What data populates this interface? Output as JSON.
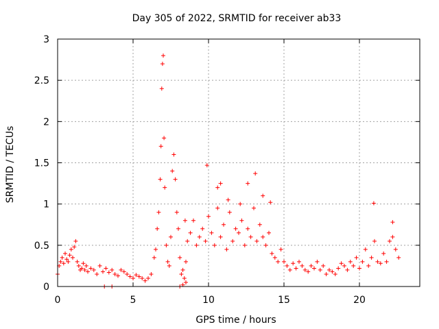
{
  "chart_data": {
    "type": "scatter",
    "title": "Day 305 of 2022, SRMTID for receiver ab33",
    "xlabel": "GPS time / hours",
    "ylabel": "SRMTID / TECUs",
    "xlim": [
      0,
      24
    ],
    "ylim": [
      0,
      3
    ],
    "x_ticks": [
      0,
      5,
      10,
      15,
      20
    ],
    "x_tick_labels": [
      "0",
      "5",
      "10",
      "15",
      "20"
    ],
    "y_ticks": [
      0,
      0.5,
      1,
      1.5,
      2,
      2.5,
      3
    ],
    "y_tick_labels": [
      "0",
      "0.5",
      "1",
      "1.5",
      "2",
      "2.5",
      "3"
    ],
    "grid": true,
    "marker": "+",
    "color": "#ff0000",
    "series": [
      {
        "name": "SRMTID",
        "x": [
          0.0,
          0.1,
          0.2,
          0.3,
          0.4,
          0.5,
          0.6,
          0.7,
          0.8,
          0.9,
          1.0,
          1.1,
          1.2,
          1.3,
          1.4,
          1.5,
          1.6,
          1.7,
          1.8,
          1.9,
          2.0,
          2.2,
          2.4,
          2.6,
          2.8,
          3.0,
          3.2,
          3.4,
          3.6,
          3.8,
          4.0,
          4.2,
          4.4,
          4.6,
          4.8,
          5.0,
          5.2,
          5.4,
          5.6,
          5.8,
          6.0,
          6.2,
          6.4,
          6.5,
          6.6,
          6.7,
          6.8,
          6.85,
          6.9,
          6.95,
          7.0,
          7.05,
          7.1,
          7.2,
          7.3,
          7.4,
          7.5,
          7.6,
          7.7,
          7.8,
          7.9,
          8.0,
          8.1,
          8.2,
          8.3,
          8.4,
          8.5,
          8.6,
          8.8,
          9.0,
          9.2,
          9.4,
          9.6,
          9.8,
          10.0,
          10.2,
          10.4,
          10.6,
          10.8,
          11.0,
          11.2,
          11.4,
          11.6,
          11.8,
          12.0,
          12.2,
          12.4,
          12.6,
          12.8,
          13.0,
          13.2,
          13.4,
          13.6,
          13.8,
          14.0,
          14.2,
          14.4,
          14.6,
          14.8,
          15.0,
          15.2,
          15.4,
          15.6,
          15.8,
          16.0,
          16.2,
          16.4,
          16.6,
          16.8,
          17.0,
          17.2,
          17.4,
          17.6,
          17.8,
          18.0,
          18.2,
          18.4,
          18.6,
          18.8,
          19.0,
          19.2,
          19.4,
          19.6,
          19.8,
          20.0,
          20.2,
          20.4,
          20.6,
          20.8,
          21.0,
          21.2,
          21.4,
          21.6,
          21.8,
          22.0,
          22.2,
          22.4,
          22.6,
          3.1,
          3.6,
          8.1,
          8.3,
          8.5,
          20.95,
          8.45,
          9.9,
          10.6,
          10.8,
          11.3,
          12.1,
          12.6,
          13.1,
          13.6,
          14.1,
          22.2
        ],
        "y": [
          0.15,
          0.25,
          0.3,
          0.35,
          0.28,
          0.4,
          0.33,
          0.3,
          0.38,
          0.45,
          0.35,
          0.48,
          0.55,
          0.3,
          0.25,
          0.2,
          0.22,
          0.28,
          0.2,
          0.25,
          0.18,
          0.22,
          0.2,
          0.15,
          0.25,
          0.18,
          0.22,
          0.17,
          0.2,
          0.15,
          0.13,
          0.2,
          0.18,
          0.15,
          0.12,
          0.1,
          0.14,
          0.12,
          0.1,
          0.07,
          0.1,
          0.15,
          0.35,
          0.45,
          0.7,
          0.9,
          1.3,
          1.7,
          2.4,
          2.7,
          2.8,
          1.8,
          1.2,
          0.5,
          0.3,
          0.25,
          0.6,
          1.4,
          1.6,
          1.3,
          0.9,
          0.7,
          0.35,
          0.15,
          0.2,
          0.1,
          0.3,
          0.55,
          0.65,
          0.8,
          0.5,
          0.6,
          0.7,
          0.55,
          0.85,
          0.65,
          0.5,
          0.95,
          0.6,
          0.75,
          0.45,
          0.9,
          0.55,
          0.7,
          0.65,
          0.8,
          0.5,
          0.7,
          0.6,
          0.95,
          0.55,
          0.75,
          0.6,
          0.5,
          0.65,
          0.4,
          0.35,
          0.3,
          0.45,
          0.3,
          0.25,
          0.2,
          0.28,
          0.22,
          0.3,
          0.25,
          0.2,
          0.18,
          0.25,
          0.22,
          0.3,
          0.2,
          0.25,
          0.15,
          0.2,
          0.18,
          0.15,
          0.22,
          0.28,
          0.25,
          0.2,
          0.3,
          0.25,
          0.35,
          0.22,
          0.3,
          0.45,
          0.25,
          0.35,
          0.55,
          0.3,
          0.28,
          0.4,
          0.3,
          0.55,
          0.6,
          0.45,
          0.35,
          0.0,
          0.0,
          0.0,
          0.02,
          0.05,
          1.01,
          0.8,
          1.47,
          1.2,
          1.25,
          1.05,
          1.0,
          1.25,
          1.37,
          1.1,
          1.02,
          0.78
        ]
      }
    ]
  }
}
